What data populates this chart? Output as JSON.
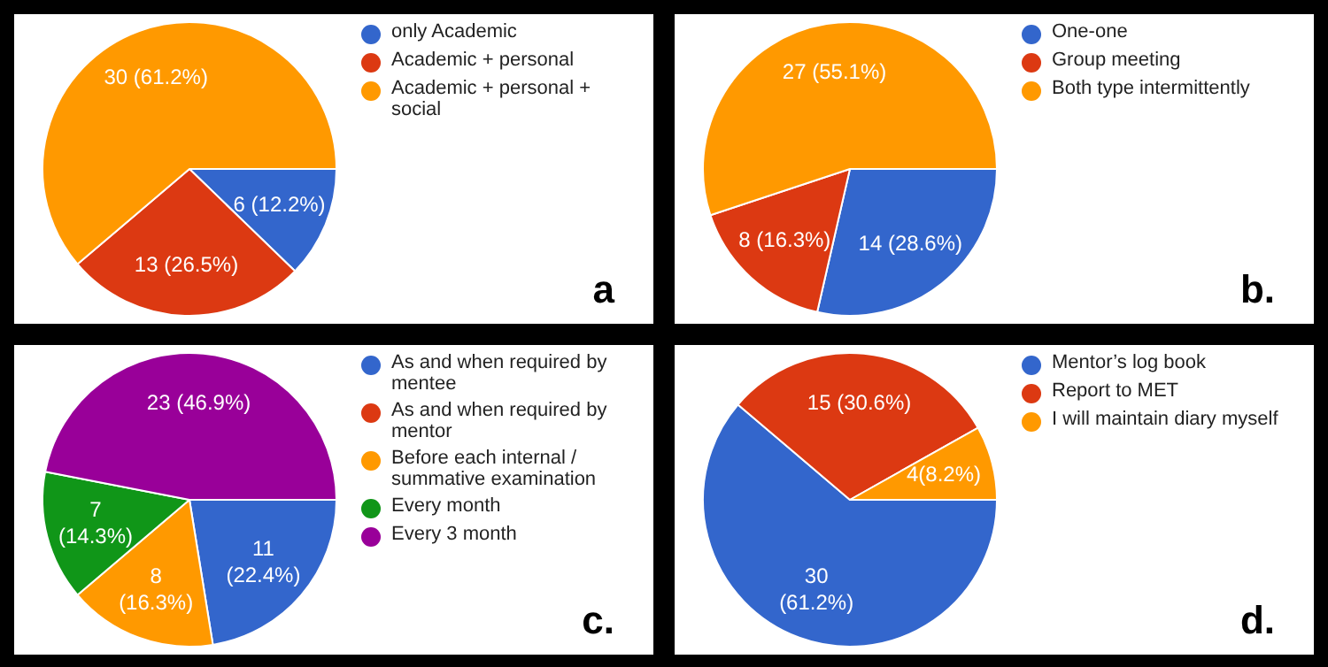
{
  "chart_data": [
    {
      "type": "pie",
      "categories": [
        "only Academic",
        "Academic + personal",
        "Academic + personal + social"
      ],
      "values": [
        6,
        13,
        30
      ],
      "colors": [
        "#3366cc",
        "#dc3912",
        "#ff9900"
      ],
      "value_labels": [
        "6 (12.2%)",
        "13 (26.5%)",
        "30 (61.2%)"
      ],
      "legend": "top right",
      "annotations": [
        "a"
      ]
    },
    {
      "type": "pie",
      "categories": [
        "One-one",
        "Group meeting",
        "Both type intermittently"
      ],
      "values": [
        14,
        8,
        27
      ],
      "colors": [
        "#3366cc",
        "#dc3912",
        "#ff9900"
      ],
      "value_labels": [
        "14 (28.6%)",
        "8 (16.3%)",
        "27 (55.1%)"
      ],
      "legend": "top right",
      "annotations": [
        "b."
      ]
    },
    {
      "type": "pie",
      "categories": [
        "As and when required by mentee",
        "As and when required by mentor",
        "Before each internal / summative examination",
        "Every month",
        "Every 3 month"
      ],
      "values": [
        11,
        0,
        8,
        7,
        23
      ],
      "colors": [
        "#3366cc",
        "#dc3912",
        "#ff9900",
        "#109618",
        "#990099"
      ],
      "value_labels": [
        "11\n(22.4%)",
        null,
        "8\n(16.3%)",
        "7\n(14.3%)",
        "23 (46.9%)"
      ],
      "legend": "top right",
      "annotations": [
        "c."
      ]
    },
    {
      "type": "pie",
      "categories": [
        "Mentor’s log book",
        "Report to MET",
        "I will maintain diary myself"
      ],
      "values": [
        30,
        15,
        4
      ],
      "colors": [
        "#3366cc",
        "#dc3912",
        "#ff9900"
      ],
      "value_labels": [
        "30\n(61.2%)",
        "15 (30.6%)",
        "4(8.2%)"
      ],
      "legend": "top right",
      "annotations": [
        "d."
      ]
    }
  ]
}
